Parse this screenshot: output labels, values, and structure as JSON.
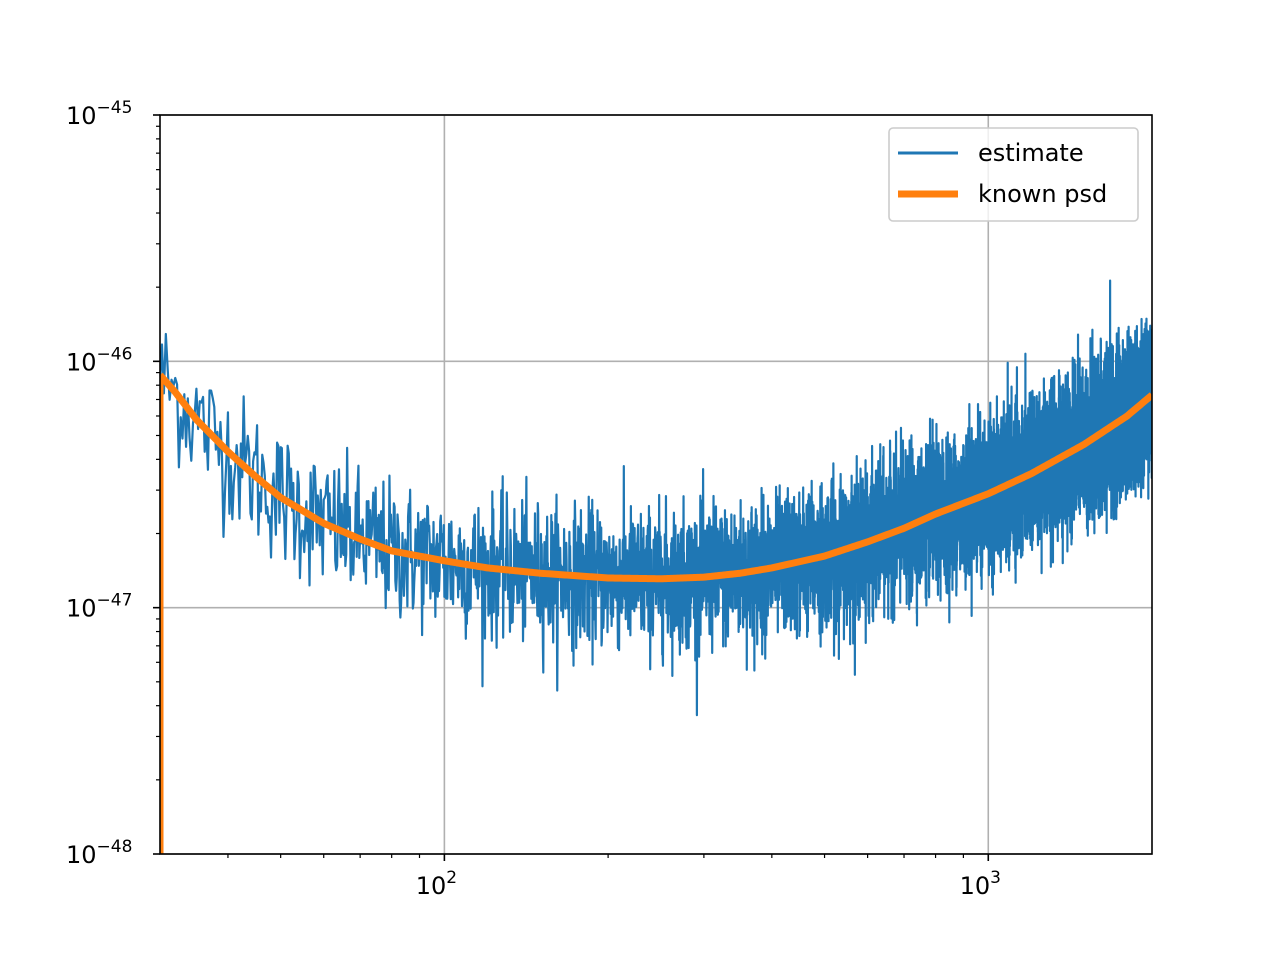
{
  "chart_data": {
    "type": "line",
    "title": "",
    "xlabel": "",
    "ylabel": "",
    "xscale": "log",
    "yscale": "log",
    "xlim": [
      30,
      2000
    ],
    "ylim": [
      1e-48,
      1e-45
    ],
    "grid": true,
    "legend_position": "top-right",
    "x_ticks": [
      {
        "base": "10",
        "exp": "2",
        "value": 100
      },
      {
        "base": "10",
        "exp": "3",
        "value": 1000
      }
    ],
    "y_ticks": [
      {
        "base": "10",
        "exp": "−48",
        "value": 1e-48
      },
      {
        "base": "10",
        "exp": "−47",
        "value": 1e-47
      },
      {
        "base": "10",
        "exp": "−46",
        "value": 1e-46
      },
      {
        "base": "10",
        "exp": "−45",
        "value": 1e-45
      }
    ],
    "series": [
      {
        "name": "estimate",
        "color": "#1f77b4",
        "style": "noisy",
        "x": [
          30,
          32,
          35,
          40,
          45,
          50,
          60,
          70,
          80,
          100,
          120,
          150,
          200,
          250,
          300,
          350,
          400,
          500,
          600,
          700,
          800,
          1000,
          1200,
          1500,
          1800,
          2000
        ],
        "y": [
          8.8e-47,
          7.5e-47,
          5.8e-47,
          4.3e-47,
          3.4e-47,
          2.8e-47,
          2.2e-47,
          1.9e-47,
          1.7e-47,
          1.55e-47,
          1.45e-47,
          1.38e-47,
          1.32e-47,
          1.31e-47,
          1.33e-47,
          1.38e-47,
          1.45e-47,
          1.62e-47,
          1.85e-47,
          2.1e-47,
          2.4e-47,
          2.9e-47,
          3.5e-47,
          4.6e-47,
          6e-47,
          7.3e-47
        ]
      },
      {
        "name": "known psd",
        "color": "#ff7f0e",
        "style": "smooth",
        "x": [
          30,
          32,
          35,
          40,
          45,
          50,
          60,
          70,
          80,
          100,
          120,
          150,
          200,
          250,
          300,
          350,
          400,
          500,
          600,
          700,
          800,
          1000,
          1200,
          1500,
          1800,
          2000
        ],
        "y": [
          8.8e-47,
          7.5e-47,
          5.8e-47,
          4.3e-47,
          3.4e-47,
          2.8e-47,
          2.2e-47,
          1.9e-47,
          1.7e-47,
          1.55e-47,
          1.45e-47,
          1.38e-47,
          1.32e-47,
          1.31e-47,
          1.33e-47,
          1.38e-47,
          1.45e-47,
          1.62e-47,
          1.85e-47,
          2.1e-47,
          2.4e-47,
          2.9e-47,
          3.5e-47,
          4.6e-47,
          6e-47,
          7.3e-47
        ]
      }
    ]
  }
}
